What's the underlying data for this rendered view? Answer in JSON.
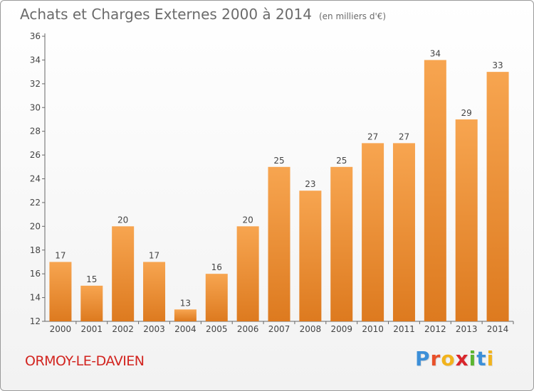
{
  "header": {
    "title": "Achats et Charges Externes 2000 à 2014",
    "unit": "(en milliers d'€)"
  },
  "footer": {
    "commune": "ORMOY-LE-DAVIEN",
    "logo_letters": [
      "P",
      "r",
      "o",
      "x",
      "i",
      "t",
      "i"
    ],
    "logo_colors": [
      "#3c8fd8",
      "#e8502a",
      "#f2b31c",
      "#d9262c",
      "#5bb531",
      "#3c8fd8",
      "#f2b31c"
    ]
  },
  "colors": {
    "bar_light": "#f7a550",
    "bar_dark": "#dd7a1f",
    "axis": "#666666",
    "text": "#444444"
  },
  "chart_data": {
    "type": "bar",
    "title": "Achats et Charges Externes 2000 à 2014",
    "subtitle": "(en milliers d'€)",
    "categories": [
      "2000",
      "2001",
      "2002",
      "2003",
      "2004",
      "2005",
      "2006",
      "2007",
      "2008",
      "2009",
      "2010",
      "2011",
      "2012",
      "2013",
      "2014"
    ],
    "values": [
      17,
      15,
      20,
      17,
      13,
      16,
      20,
      25,
      23,
      25,
      27,
      27,
      34,
      29,
      33
    ],
    "ylim": [
      12,
      36
    ],
    "yticks": [
      12,
      14,
      16,
      18,
      20,
      22,
      24,
      26,
      28,
      30,
      32,
      34,
      36
    ],
    "grid": false,
    "legend": "none"
  }
}
